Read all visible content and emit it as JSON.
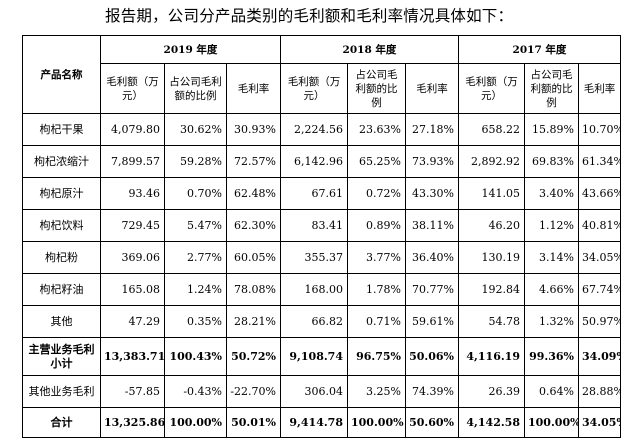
{
  "intro": "报告期，公司分产品类别的毛利额和毛利率情况具体如下：",
  "header": {
    "product_col": "产品名称",
    "years": [
      "2019 年度",
      "2018 年度",
      "2017 年度"
    ],
    "sub": [
      [
        "毛利额（万元）",
        "占公司毛利额的比例",
        "毛利率"
      ],
      [
        "毛利额（万元）",
        "占公司毛利额的比例",
        "毛利率"
      ],
      [
        "毛利额（万元）",
        "占公司毛利额的比例",
        "毛利率"
      ]
    ]
  },
  "rows": [
    {
      "name": "枸杞干果",
      "bold": false,
      "values": [
        "4,079.80",
        "30.62%",
        "30.93%",
        "2,224.56",
        "23.63%",
        "27.18%",
        "658.22",
        "15.89%",
        "10.70%"
      ]
    },
    {
      "name": "枸杞浓缩汁",
      "bold": false,
      "values": [
        "7,899.57",
        "59.28%",
        "72.57%",
        "6,142.96",
        "65.25%",
        "73.93%",
        "2,892.92",
        "69.83%",
        "61.34%"
      ]
    },
    {
      "name": "枸杞原汁",
      "bold": false,
      "values": [
        "93.46",
        "0.70%",
        "62.48%",
        "67.61",
        "0.72%",
        "43.30%",
        "141.05",
        "3.40%",
        "43.66%"
      ]
    },
    {
      "name": "枸杞饮料",
      "bold": false,
      "values": [
        "729.45",
        "5.47%",
        "62.30%",
        "83.41",
        "0.89%",
        "38.11%",
        "46.20",
        "1.12%",
        "40.81%"
      ]
    },
    {
      "name": "枸杞粉",
      "bold": false,
      "values": [
        "369.06",
        "2.77%",
        "60.05%",
        "355.37",
        "3.77%",
        "36.40%",
        "130.19",
        "3.14%",
        "34.05%"
      ]
    },
    {
      "name": "枸杞籽油",
      "bold": false,
      "values": [
        "165.08",
        "1.24%",
        "78.08%",
        "168.00",
        "1.78%",
        "70.77%",
        "192.84",
        "4.66%",
        "67.74%"
      ]
    },
    {
      "name": "其他",
      "bold": false,
      "values": [
        "47.29",
        "0.35%",
        "28.21%",
        "66.82",
        "0.71%",
        "59.61%",
        "54.78",
        "1.32%",
        "50.97%"
      ]
    },
    {
      "name": "主营业务毛利小计",
      "bold": true,
      "values": [
        "13,383.71",
        "100.43%",
        "50.72%",
        "9,108.74",
        "96.75%",
        "50.06%",
        "4,116.19",
        "99.36%",
        "34.09%"
      ]
    },
    {
      "name": "其他业务毛利",
      "bold": false,
      "values": [
        "-57.85",
        "-0.43%",
        "-22.70%",
        "306.04",
        "3.25%",
        "74.39%",
        "26.39",
        "0.64%",
        "28.88%"
      ]
    },
    {
      "name": "合计",
      "bold": true,
      "values": [
        "13,325.86",
        "100.00%",
        "50.01%",
        "9,414.78",
        "100.00%",
        "50.60%",
        "4,142.58",
        "100.00%",
        "34.05%"
      ]
    }
  ]
}
